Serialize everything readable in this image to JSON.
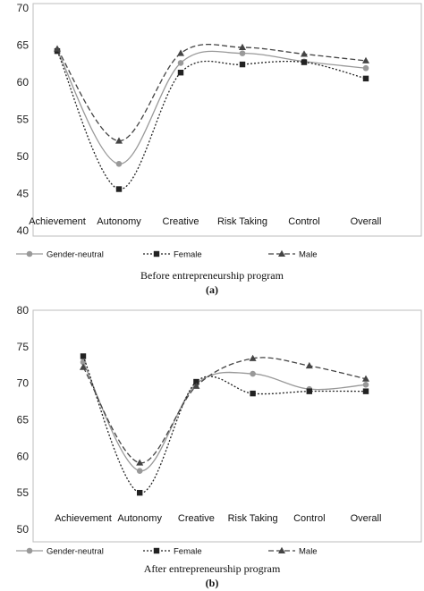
{
  "chart_data": [
    {
      "type": "line",
      "panel_label": "(a)",
      "caption": "Before entrepreneurship program",
      "categories": [
        "Achievement",
        "Autonomy",
        "Creative",
        "Risk Taking",
        "Control",
        "Overall"
      ],
      "ylim": [
        40,
        70
      ],
      "yticks": [
        40,
        45,
        50,
        55,
        60,
        65,
        70
      ],
      "legend_position": "bottom",
      "series": [
        {
          "name": "Gender-neutral",
          "marker": "circle",
          "line": "solid",
          "color": "#999999",
          "values": [
            64.3,
            49.0,
            62.6,
            63.9,
            62.8,
            61.9
          ]
        },
        {
          "name": "Female",
          "marker": "square",
          "line": "dotted",
          "color": "#222222",
          "values": [
            64.2,
            45.6,
            61.3,
            62.4,
            62.7,
            60.5
          ]
        },
        {
          "name": "Male",
          "marker": "triangle",
          "line": "dashed",
          "color": "#444444",
          "values": [
            64.5,
            52.1,
            63.9,
            64.7,
            63.8,
            62.9
          ]
        }
      ]
    },
    {
      "type": "line",
      "panel_label": "(b)",
      "caption": "After entrepreneurship program",
      "categories": [
        "Achievement",
        "Autonomy",
        "Creative",
        "Risk Taking",
        "Control",
        "Overall"
      ],
      "ylim": [
        50,
        80
      ],
      "yticks": [
        50,
        55,
        60,
        65,
        70,
        75,
        80
      ],
      "legend_position": "bottom",
      "series": [
        {
          "name": "Gender-neutral",
          "marker": "circle",
          "line": "solid",
          "color": "#999999",
          "values": [
            72.9,
            58.0,
            69.9,
            71.3,
            69.2,
            69.8
          ]
        },
        {
          "name": "Female",
          "marker": "square",
          "line": "dotted",
          "color": "#222222",
          "values": [
            73.7,
            55.0,
            70.2,
            68.6,
            68.9,
            68.9
          ]
        },
        {
          "name": "Male",
          "marker": "triangle",
          "line": "dashed",
          "color": "#444444",
          "values": [
            72.2,
            59.1,
            69.6,
            73.4,
            72.4,
            70.6
          ]
        }
      ]
    }
  ]
}
